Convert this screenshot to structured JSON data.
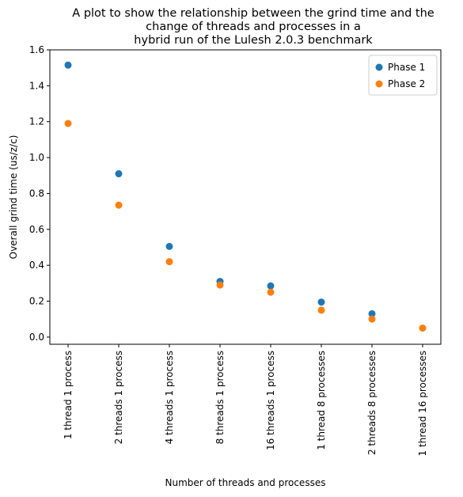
{
  "chart_data": {
    "type": "scatter",
    "title_lines": [
      "A plot to show the relationship between the grind time and the",
      "change of threads and processes in a",
      "hybrid run of the Lulesh 2.0.3 benchmark"
    ],
    "xlabel": "Number of threads and processes",
    "ylabel": "Overall grind time (us/z/c)",
    "categories": [
      "1 thread 1 process",
      "2 threads 1 process",
      "4 threads 1 process",
      "8 threads 1 process",
      "16 threads 1 process",
      "1 thread 8 processes",
      "2 threads 8 processes",
      "1 thread 16 processes"
    ],
    "ylim": [
      -0.04,
      1.6
    ],
    "yticks": [
      0.0,
      0.2,
      0.4,
      0.6,
      0.8,
      1.0,
      1.2,
      1.4,
      1.6
    ],
    "ytick_labels": [
      "0.0",
      "0.2",
      "0.4",
      "0.6",
      "0.8",
      "1.0",
      "1.2",
      "1.4",
      "1.6"
    ],
    "grid": false,
    "legend_position": "top-right",
    "series": [
      {
        "name": "Phase 1",
        "color": "#1f77b4",
        "values": [
          1.515,
          0.91,
          0.505,
          0.31,
          0.285,
          0.195,
          0.13,
          null
        ]
      },
      {
        "name": "Phase 2",
        "color": "#ff7f0e",
        "values": [
          1.19,
          0.735,
          0.42,
          0.29,
          0.25,
          0.15,
          0.1,
          0.05
        ]
      }
    ]
  }
}
